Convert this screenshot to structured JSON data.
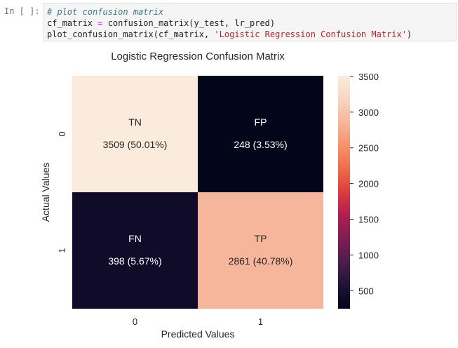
{
  "cell": {
    "prompt": "In [ ]:",
    "code_lines": [
      [
        {
          "t": "comment",
          "v": "# plot confusion matrix"
        }
      ],
      [
        {
          "t": "plain",
          "v": "cf_matrix "
        },
        {
          "t": "op",
          "v": "="
        },
        {
          "t": "plain",
          "v": " confusion_matrix(y_test, lr_pred)"
        }
      ],
      [
        {
          "t": "plain",
          "v": "plot_confusion_matrix(cf_matrix, "
        },
        {
          "t": "str",
          "v": "'Logistic Regression Confusion Matrix'"
        },
        {
          "t": "plain",
          "v": ")"
        }
      ]
    ]
  },
  "chart_data": {
    "type": "heatmap",
    "title": "Logistic Regression Confusion Matrix",
    "xlabel": "Predicted Values",
    "ylabel": "Actual Values",
    "x_categories": [
      "0",
      "1"
    ],
    "y_categories": [
      "0",
      "1"
    ],
    "values": [
      [
        3509,
        248
      ],
      [
        398,
        2861
      ]
    ],
    "cell_labels": [
      [
        "TN",
        "FP"
      ],
      [
        "FN",
        "TP"
      ]
    ],
    "cell_annotations": [
      [
        "3509 (50.01%)",
        "248 (3.53%)"
      ],
      [
        "398 (5.67%)",
        "2861 (40.78%)"
      ]
    ],
    "colorbar": {
      "range": [
        248,
        3509
      ],
      "ticks": [
        3500,
        3000,
        2500,
        2000,
        1500,
        1000,
        500
      ]
    },
    "colormap": [
      "#03051a",
      "#1e1338",
      "#4c1d4b",
      "#7f1d55",
      "#b01e4e",
      "#dd3b3f",
      "#f06b49",
      "#f5926b",
      "#f6b69a",
      "#f8d6c4",
      "#faebdd"
    ]
  }
}
